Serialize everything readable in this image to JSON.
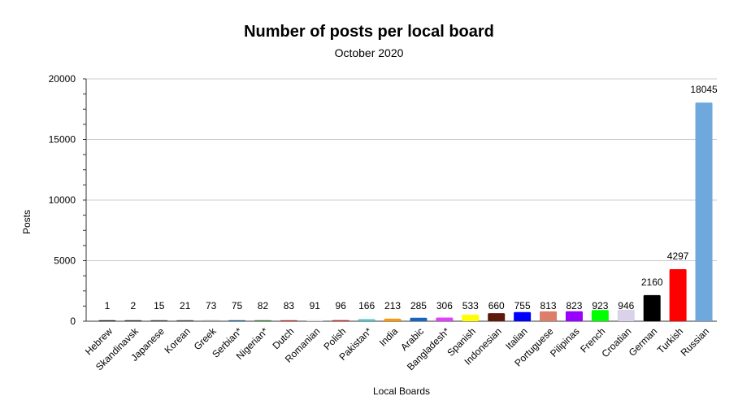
{
  "chart_data": {
    "type": "bar",
    "title": "Number of posts per local board",
    "subtitle": "October 2020",
    "xlabel": "Local Boards",
    "ylabel": "Posts",
    "ylim": [
      0,
      20000
    ],
    "yticks": [
      0,
      5000,
      10000,
      15000,
      20000
    ],
    "grid": true,
    "categories": [
      "Hebrew",
      "Skandinavsk",
      "Japanese",
      "Korean",
      "Greek",
      "Serbian*",
      "Nigerian*",
      "Dutch",
      "Romanian",
      "Polish",
      "Pakistan*",
      "India",
      "Arabic",
      "Bangladesh*",
      "Spanish",
      "Indonesian",
      "Italian",
      "Portuguese",
      "Pilipinas",
      "French",
      "Croatian",
      "German",
      "Turkish",
      "Russian"
    ],
    "values": [
      1,
      2,
      15,
      21,
      73,
      75,
      82,
      83,
      91,
      96,
      166,
      213,
      285,
      306,
      533,
      660,
      755,
      813,
      823,
      923,
      946,
      2160,
      4297,
      18045
    ],
    "colors": [
      "#222222",
      "#2f2f2f",
      "#3a3a3a",
      "#444444",
      "#999999",
      "#1f5c99",
      "#2e7d32",
      "#c62828",
      "#e0e0e0",
      "#c62828",
      "#4fc3c8",
      "#ff9800",
      "#1565c0",
      "#e040fb",
      "#ffff00",
      "#5d1a0a",
      "#0000ff",
      "#dd7e6b",
      "#9900ff",
      "#00ff00",
      "#d9d2e9",
      "#000000",
      "#ff0000",
      "#6fa8dc"
    ]
  }
}
